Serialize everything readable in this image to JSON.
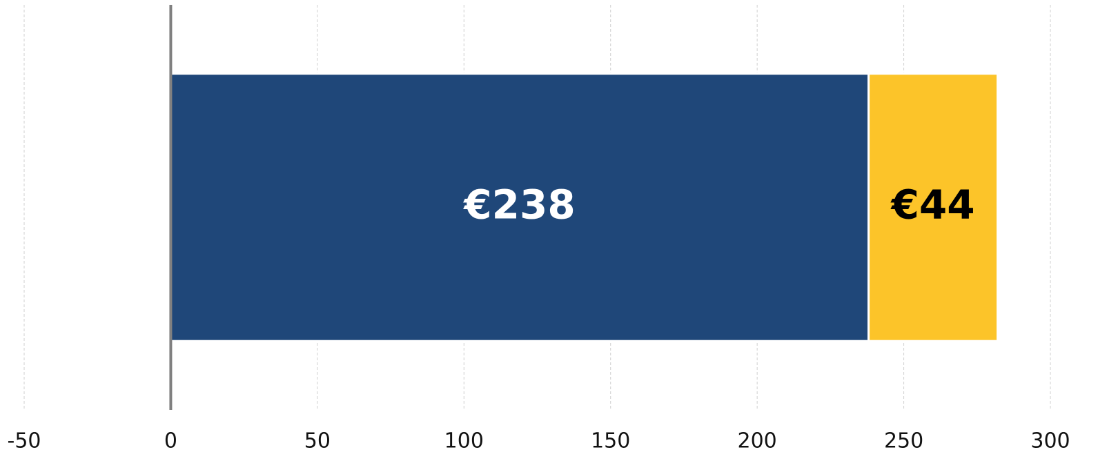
{
  "chart_data": {
    "type": "stacked-barh",
    "categories": [
      null
    ],
    "series": [
      {
        "color": "#1f4779",
        "label_color": "#ffffff",
        "values": [
          238
        ],
        "value_labels": [
          "€238"
        ]
      },
      {
        "color": "#fcc429",
        "label_color": "#000000",
        "values": [
          44
        ],
        "value_labels": [
          "€44"
        ]
      }
    ],
    "xlim": [
      -50,
      300
    ],
    "xticks": [
      -50,
      0,
      50,
      100,
      150,
      200,
      250,
      300
    ],
    "grid": true
  }
}
